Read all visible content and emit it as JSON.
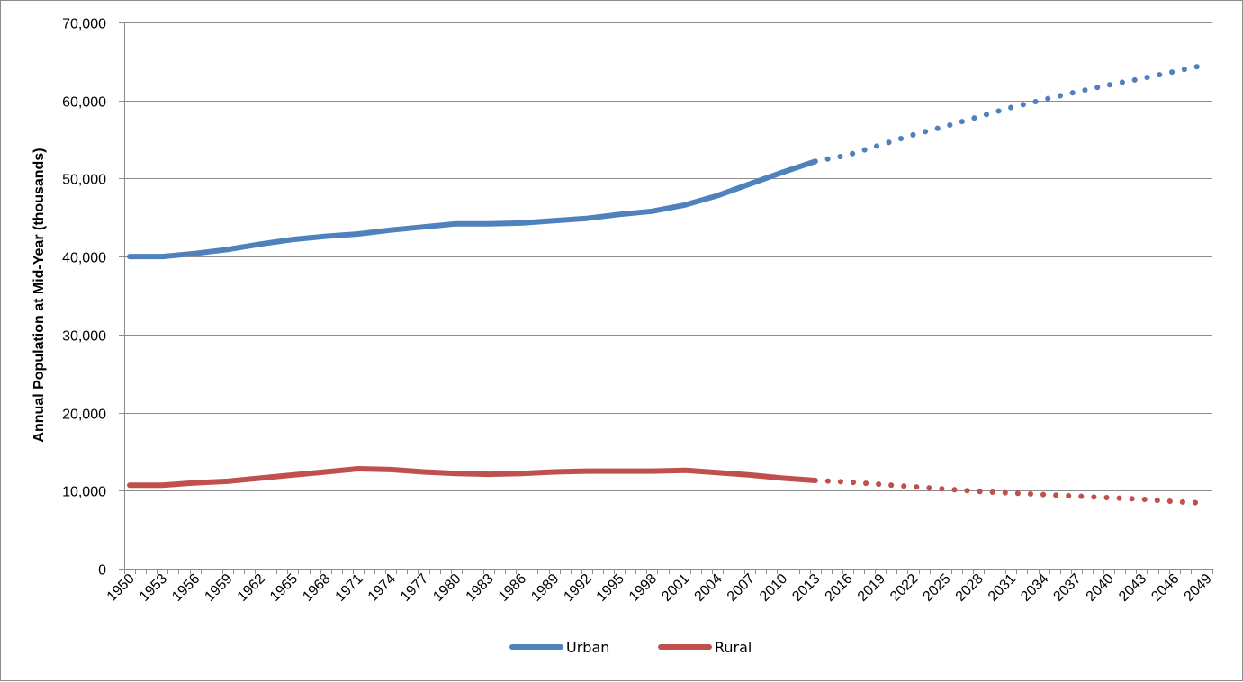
{
  "chart_data": {
    "type": "line",
    "title": "",
    "xlabel": "",
    "ylabel": "Annual Population at Mid-Year (thousands)",
    "ylim": [
      0,
      70000
    ],
    "yticks": [
      0,
      10000,
      20000,
      30000,
      40000,
      50000,
      60000,
      70000
    ],
    "ytick_labels": [
      "0",
      "10,000",
      "20,000",
      "30,000",
      "40,000",
      "50,000",
      "60,000",
      "70,000"
    ],
    "xlim": [
      1950,
      2049
    ],
    "xtick_labels": [
      "1950",
      "1953",
      "1956",
      "1959",
      "1962",
      "1965",
      "1968",
      "1971",
      "1974",
      "1977",
      "1980",
      "1983",
      "1986",
      "1989",
      "1992",
      "1995",
      "1998",
      "2001",
      "2004",
      "2007",
      "2010",
      "2013",
      "2016",
      "2019",
      "2022",
      "2025",
      "2028",
      "2031",
      "2034",
      "2037",
      "2040",
      "2043",
      "2046",
      "2049"
    ],
    "grid": "horizontal",
    "legend_position": "bottom",
    "projection_start": 2014,
    "series": [
      {
        "name": "Urban",
        "color": "#4f81bd",
        "points": [
          [
            1950,
            40000
          ],
          [
            1953,
            40000
          ],
          [
            1956,
            40400
          ],
          [
            1959,
            40900
          ],
          [
            1962,
            41600
          ],
          [
            1965,
            42200
          ],
          [
            1968,
            42600
          ],
          [
            1971,
            42900
          ],
          [
            1974,
            43400
          ],
          [
            1977,
            43800
          ],
          [
            1980,
            44200
          ],
          [
            1983,
            44200
          ],
          [
            1986,
            44300
          ],
          [
            1989,
            44600
          ],
          [
            1992,
            44900
          ],
          [
            1995,
            45400
          ],
          [
            1998,
            45800
          ],
          [
            2001,
            46600
          ],
          [
            2004,
            47800
          ],
          [
            2007,
            49300
          ],
          [
            2010,
            50800
          ],
          [
            2013,
            52200
          ],
          [
            2016,
            53000
          ],
          [
            2019,
            54300
          ],
          [
            2022,
            55600
          ],
          [
            2025,
            56700
          ],
          [
            2028,
            57900
          ],
          [
            2031,
            59100
          ],
          [
            2034,
            60100
          ],
          [
            2037,
            61100
          ],
          [
            2040,
            62000
          ],
          [
            2043,
            62800
          ],
          [
            2046,
            63700
          ],
          [
            2049,
            64600
          ]
        ]
      },
      {
        "name": "Rural",
        "color": "#c0504d",
        "points": [
          [
            1950,
            10700
          ],
          [
            1953,
            10700
          ],
          [
            1956,
            11000
          ],
          [
            1959,
            11200
          ],
          [
            1962,
            11600
          ],
          [
            1965,
            12000
          ],
          [
            1968,
            12400
          ],
          [
            1971,
            12800
          ],
          [
            1974,
            12700
          ],
          [
            1977,
            12400
          ],
          [
            1980,
            12200
          ],
          [
            1983,
            12100
          ],
          [
            1986,
            12200
          ],
          [
            1989,
            12400
          ],
          [
            1992,
            12500
          ],
          [
            1995,
            12500
          ],
          [
            1998,
            12500
          ],
          [
            2001,
            12600
          ],
          [
            2004,
            12300
          ],
          [
            2007,
            12000
          ],
          [
            2010,
            11600
          ],
          [
            2013,
            11300
          ],
          [
            2016,
            11100
          ],
          [
            2019,
            10800
          ],
          [
            2022,
            10500
          ],
          [
            2025,
            10200
          ],
          [
            2028,
            9900
          ],
          [
            2031,
            9700
          ],
          [
            2034,
            9500
          ],
          [
            2037,
            9300
          ],
          [
            2040,
            9100
          ],
          [
            2043,
            8900
          ],
          [
            2046,
            8600
          ],
          [
            2049,
            8400
          ]
        ]
      }
    ]
  }
}
